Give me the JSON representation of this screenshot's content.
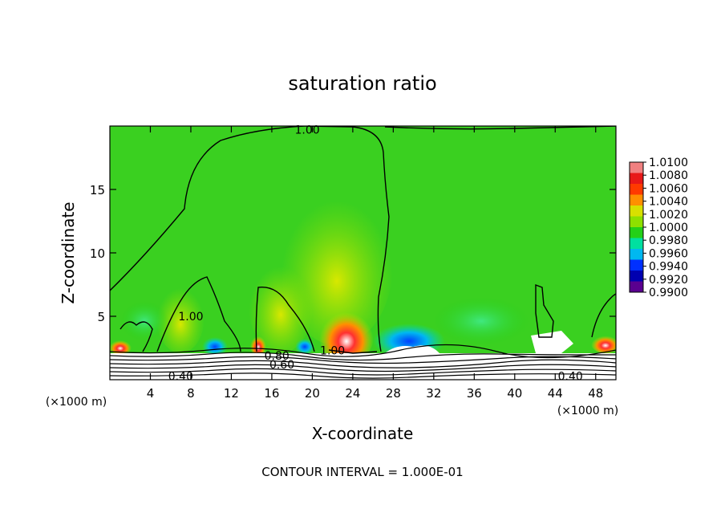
{
  "chart_data": {
    "type": "heatmap",
    "title": "saturation ratio",
    "xlabel": "X-coordinate",
    "ylabel": "Z-coordinate",
    "xunit": "(×1000 m)",
    "footer": "CONTOUR INTERVAL = 1.000E-01",
    "xlim": [
      0,
      50
    ],
    "ylim": [
      0,
      20
    ],
    "x_ticks": [
      4,
      8,
      12,
      16,
      20,
      24,
      28,
      32,
      36,
      40,
      44,
      48
    ],
    "y_ticks": [
      5,
      10,
      15
    ],
    "colorbar": {
      "labels": [
        "1.0100",
        "1.0080",
        "1.0060",
        "1.0040",
        "1.0020",
        "1.0000",
        "0.9980",
        "0.9960",
        "0.9940",
        "0.9920",
        "0.9900"
      ],
      "colors": [
        "#f08080",
        "#e81818",
        "#ff3a00",
        "#ff9000",
        "#d8e000",
        "#8ee000",
        "#24d018",
        "#00e0a0",
        "#00b8f0",
        "#0030ff",
        "#0000b0",
        "#5a0090"
      ]
    },
    "contour_labels": [
      {
        "text": "1.00",
        "x": 19.5,
        "z": 19.7
      },
      {
        "text": "1.00",
        "x": 8.0,
        "z": 5.0
      },
      {
        "text": "1.00",
        "x": 22.0,
        "z": 2.3
      },
      {
        "text": "0.80",
        "x": 16.5,
        "z": 1.9
      },
      {
        "text": "0.60",
        "x": 17.0,
        "z": 1.2
      },
      {
        "text": "0.40",
        "x": 7.0,
        "z": 0.3
      },
      {
        "text": "0.40",
        "x": 45.5,
        "z": 0.3
      }
    ]
  }
}
